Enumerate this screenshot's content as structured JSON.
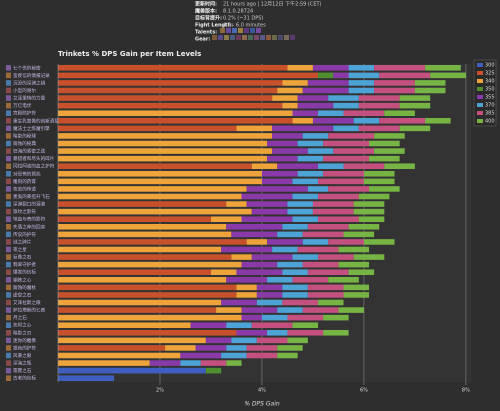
{
  "header": {
    "lines": [
      {
        "label": "更新时间:",
        "value": "21 hours ago | 12月12日 下午2:59 (CET)"
      },
      {
        "label": "魔兽版本:",
        "value": "8.1.0.28724"
      },
      {
        "label": "目标背提升:",
        "value": "0.2% (~31 DPS)"
      },
      {
        "label": "Fight Length:",
        "value": "4.0 - 6.0 minutes"
      },
      {
        "label": "Talents:",
        "value": ""
      },
      {
        "label": "Gear:",
        "value": ""
      }
    ]
  },
  "chart_data": {
    "type": "stacked-bar-horizontal",
    "title": "Trinkets % DPS Gain per Item Levels",
    "x_label": "% DPS Gain",
    "categories": [
      "七个伤的秘密",
      "蛮疾信的情报记录",
      "沉没的深渊之钥",
      "小型的谢尔",
      "艾泽里特的力量",
      "万亿电伏",
      "宫殿防护符",
      "重生乳凿像的创新酒载者",
      "魔法士之炼魔引擎",
      "暗影的秘球",
      "腐蚀的秘典",
      "狂海的紧密之弦",
      "暴猎者和尽头的碎片",
      "冈拉阿诺的血之护符",
      "对恐怖的预兆",
      "雕刻的药膏",
      "攻击的传道",
      "墨鬼的黄疸升飞石",
      "深渊裂口的泪滴",
      "旗纹之影符",
      "地血与奇的影符",
      "失落之神的回音",
      "传说的护符",
      "谜之碎片",
      "夜之星",
      "巨像之石",
      "翡翠守护者",
      "爆发的信标",
      "钢铁之心",
      "腐蚀的魔杖",
      "虚空之石",
      "艾泽拉斯之眼",
      "萨拉塔斯的匕首",
      "月之石",
      "灰烬之心",
      "暗影之刃",
      "迷你的雕像",
      "银色的护符",
      "风暴之眼",
      "深海之瓶",
      "雷霆之石",
      "古老的信标"
    ],
    "series": [
      {
        "name": "300",
        "color": "#3f5fc0",
        "values": [
          null,
          null,
          null,
          null,
          null,
          null,
          null,
          null,
          null,
          null,
          null,
          null,
          null,
          null,
          null,
          null,
          null,
          null,
          null,
          null,
          null,
          null,
          null,
          null,
          null,
          null,
          null,
          null,
          null,
          null,
          null,
          null,
          null,
          null,
          null,
          null,
          null,
          null,
          null,
          null,
          2.9,
          1.1
        ]
      },
      {
        "name": "325",
        "color": "#c8502a",
        "values": [
          4.5,
          5.1,
          4.4,
          4.3,
          4.2,
          4.4,
          null,
          4.6,
          3.5,
          null,
          null,
          null,
          null,
          3.8,
          null,
          null,
          null,
          null,
          3.3,
          null,
          3.0,
          null,
          null,
          3.7,
          null,
          3.4,
          null,
          3.0,
          null,
          3.5,
          3.5,
          null,
          3.1,
          null,
          null,
          3.5,
          null,
          2.1,
          null,
          null,
          null,
          null
        ]
      },
      {
        "name": "340",
        "color": "#eea43a",
        "values": [
          0.5,
          null,
          0.5,
          0.5,
          0.5,
          0.3,
          4.6,
          0.4,
          0.7,
          4.2,
          4.1,
          4.2,
          4.1,
          0.5,
          4.0,
          4.0,
          3.7,
          3.6,
          0.4,
          3.8,
          0.6,
          3.3,
          3.4,
          0.4,
          3.2,
          0.4,
          3.6,
          0.5,
          3.3,
          0.4,
          0.4,
          3.2,
          0.5,
          3.6,
          2.6,
          null,
          2.9,
          0.6,
          2.4,
          1.8,
          null,
          null
        ]
      },
      {
        "name": "350",
        "color": "#4f8f2f",
        "values": [
          null,
          0.3,
          null,
          null,
          null,
          null,
          null,
          null,
          null,
          null,
          null,
          null,
          null,
          null,
          null,
          null,
          null,
          null,
          null,
          null,
          null,
          null,
          null,
          null,
          null,
          null,
          null,
          null,
          null,
          null,
          null,
          null,
          null,
          null,
          null,
          null,
          null,
          null,
          null,
          null,
          0.3,
          null
        ]
      },
      {
        "name": "355",
        "color": "#8a3aa8",
        "values": [
          0.7,
          0.3,
          0.8,
          0.9,
          0.6,
          0.7,
          0.5,
          0.8,
          1.2,
          0.6,
          0.6,
          0.7,
          0.6,
          0.8,
          0.7,
          0.6,
          1.2,
          1.0,
          0.8,
          0.7,
          1.0,
          1.1,
          0.9,
          0.7,
          1.0,
          0.8,
          0.7,
          0.9,
          0.8,
          0.5,
          0.5,
          0.7,
          0.7,
          0.4,
          0.7,
          0.6,
          0.5,
          0.6,
          0.8,
          0.6,
          null,
          null
        ]
      },
      {
        "name": "370",
        "color": "#4ea3d6",
        "values": [
          0.5,
          0.6,
          0.5,
          0.5,
          0.6,
          0.5,
          0.5,
          0.5,
          0.5,
          0.5,
          0.5,
          0.5,
          0.5,
          0.5,
          0.5,
          0.5,
          0.4,
          0.5,
          0.5,
          0.5,
          0.5,
          0.5,
          0.5,
          0.5,
          0.5,
          0.5,
          0.5,
          0.5,
          0.5,
          0.5,
          0.5,
          0.5,
          0.5,
          0.5,
          0.5,
          0.4,
          0.5,
          0.4,
          0.5,
          0.4,
          null,
          null
        ]
      },
      {
        "name": "385",
        "color": "#c4507f",
        "values": [
          1.0,
          1.0,
          0.8,
          0.8,
          0.8,
          0.8,
          0.8,
          0.9,
          0.8,
          0.9,
          0.9,
          0.8,
          0.9,
          0.8,
          0.8,
          0.9,
          0.8,
          0.8,
          0.8,
          0.8,
          0.8,
          0.8,
          0.8,
          0.7,
          0.8,
          0.7,
          0.7,
          0.8,
          0.7,
          0.7,
          0.7,
          0.7,
          0.7,
          0.7,
          0.8,
          0.7,
          0.6,
          0.6,
          0.6,
          0.5,
          null,
          null
        ]
      },
      {
        "name": "400",
        "color": "#76b444",
        "values": [
          0.7,
          0.7,
          0.6,
          0.6,
          0.6,
          0.6,
          0.6,
          0.5,
          0.6,
          0.6,
          0.6,
          0.6,
          0.6,
          0.6,
          0.6,
          0.6,
          0.6,
          0.6,
          0.6,
          0.6,
          0.5,
          0.6,
          0.6,
          0.6,
          0.6,
          0.6,
          0.6,
          0.5,
          0.6,
          0.5,
          0.5,
          0.5,
          0.5,
          0.5,
          0.5,
          0.5,
          0.4,
          0.5,
          0.4,
          0.3,
          null,
          null
        ]
      }
    ],
    "xlim": [
      0,
      8.1
    ],
    "xticks": [
      {
        "value": 2,
        "label": "2%"
      },
      {
        "value": 4,
        "label": "4%"
      },
      {
        "value": 6,
        "label": "6%"
      },
      {
        "value": 8,
        "label": "8%"
      }
    ],
    "grid": true,
    "legend": "right"
  }
}
